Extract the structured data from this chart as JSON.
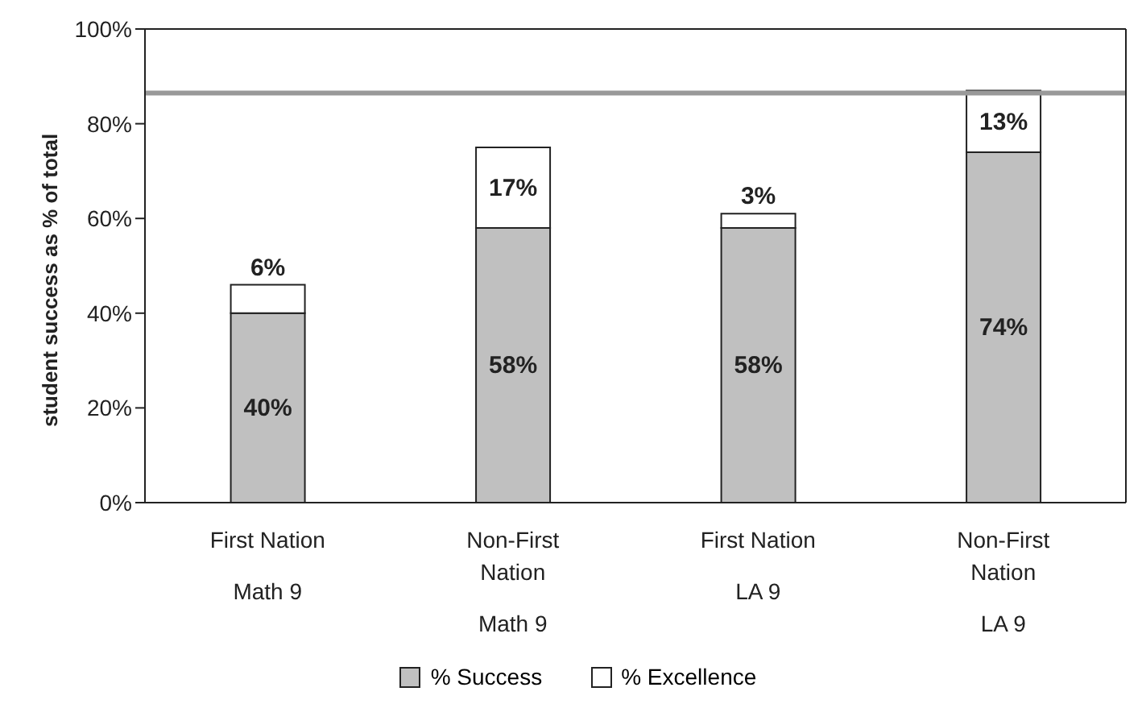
{
  "chart_data": {
    "type": "bar",
    "stacked": true,
    "ylabel": "student success as % of total",
    "categories": [
      "First Nation\nMath 9",
      "Non-First\nNation\nMath 9",
      "First Nation\nLA 9",
      "Non-First\nNation\nLA 9"
    ],
    "series": [
      {
        "name": "% Success",
        "color": "#c0c0c0",
        "values": [
          40,
          58,
          58,
          74
        ],
        "value_labels": [
          "40%",
          "58%",
          "58%",
          "74%"
        ]
      },
      {
        "name": "% Excellence",
        "color": "#ffffff",
        "values": [
          6,
          17,
          3,
          13
        ],
        "value_labels": [
          "6%",
          "17%",
          "3%",
          "13%"
        ]
      }
    ],
    "ylim": [
      0,
      100
    ],
    "yticks": [
      {
        "value": 0,
        "label": "0%"
      },
      {
        "value": 20,
        "label": "20%"
      },
      {
        "value": 40,
        "label": "40%"
      },
      {
        "value": 60,
        "label": "60%"
      },
      {
        "value": 80,
        "label": "80%"
      },
      {
        "value": 100,
        "label": "100%"
      }
    ],
    "ref_lines": [
      {
        "axis": "y",
        "value": 86.5,
        "color": "#999999"
      }
    ],
    "grid": false,
    "legend": "bottom"
  }
}
